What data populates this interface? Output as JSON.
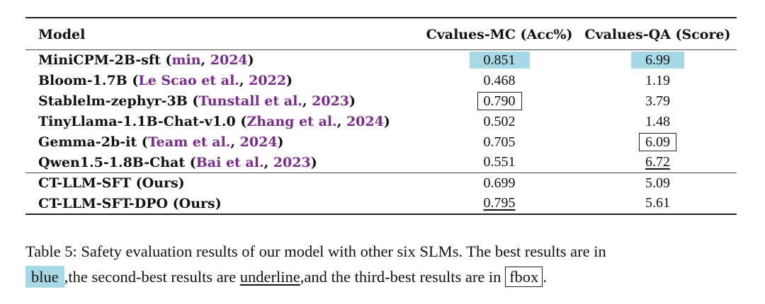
{
  "table": {
    "headers": [
      "Model",
      "Cvalues-MC (Acc%)",
      "Cvalues-QA (Score)"
    ],
    "group1": [
      {
        "model": "MiniCPM-2B-sft",
        "cite_author": "min",
        "cite_year": "2024",
        "mc": "0.851",
        "qa": "6.99",
        "mc_style": "best",
        "qa_style": "best"
      },
      {
        "model": "Bloom-1.7B",
        "cite_author": "Le Scao et al.",
        "cite_year": "2022",
        "mc": "0.468",
        "qa": "1.19",
        "mc_style": "",
        "qa_style": ""
      },
      {
        "model": "Stablelm-zephyr-3B",
        "cite_author": "Tunstall et al.",
        "cite_year": "2023",
        "mc": "0.790",
        "qa": "3.79",
        "mc_style": "third",
        "qa_style": ""
      },
      {
        "model": "TinyLlama-1.1B-Chat-v1.0",
        "cite_author": "Zhang et al.",
        "cite_year": "2024",
        "mc": "0.502",
        "qa": "1.48",
        "mc_style": "",
        "qa_style": ""
      },
      {
        "model": "Gemma-2b-it",
        "cite_author": "Team et al.",
        "cite_year": "2024",
        "mc": "0.705",
        "qa": "6.09",
        "mc_style": "",
        "qa_style": "third"
      },
      {
        "model": "Qwen1.5-1.8B-Chat",
        "cite_author": "Bai et al.",
        "cite_year": "2023",
        "mc": "0.551",
        "qa": "6.72",
        "mc_style": "",
        "qa_style": "second"
      }
    ],
    "group2": [
      {
        "model": "CT-LLM-SFT (Ours)",
        "mc": "0.699",
        "qa": "5.09",
        "mc_style": "",
        "qa_style": ""
      },
      {
        "model": "CT-LLM-SFT-DPO (Ours)",
        "mc": "0.795",
        "qa": "5.61",
        "mc_style": "second",
        "qa_style": ""
      }
    ]
  },
  "caption": {
    "part1": "Table 5: Safety evaluation results of our model with other six SLMs. The best results are in",
    "blue_word": "blue",
    "part2": ",the second-best results are ",
    "underline_word": "underline",
    "part3": ",and the third-best results are in ",
    "box_word": "fbox",
    "part4": "."
  },
  "colors": {
    "citation": "#7b2a8e",
    "best_highlight": "#a7d8e6"
  }
}
